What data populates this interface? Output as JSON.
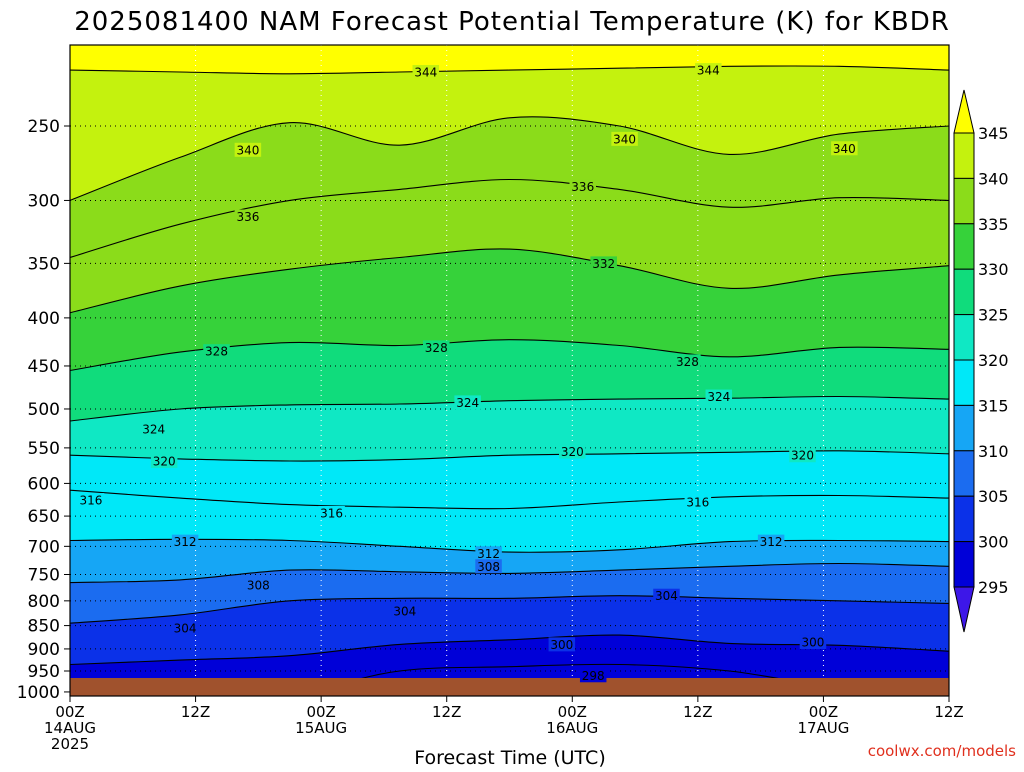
{
  "chart_data": {
    "type": "heatmap",
    "title": "2025081400 NAM Forecast Potential Temperature (K) for KBDR",
    "xlabel": "Forecast Time (UTC)",
    "ylabel": "",
    "x_ticks": [
      {
        "hour": 0,
        "line1": "00Z",
        "line2": "14AUG",
        "line3": "2025"
      },
      {
        "hour": 12,
        "line1": "12Z",
        "line2": "",
        "line3": ""
      },
      {
        "hour": 24,
        "line1": "00Z",
        "line2": "15AUG",
        "line3": ""
      },
      {
        "hour": 36,
        "line1": "12Z",
        "line2": "",
        "line3": ""
      },
      {
        "hour": 48,
        "line1": "00Z",
        "line2": "16AUG",
        "line3": ""
      },
      {
        "hour": 60,
        "line1": "12Z",
        "line2": "",
        "line3": ""
      },
      {
        "hour": 72,
        "line1": "00Z",
        "line2": "17AUG",
        "line3": ""
      },
      {
        "hour": 84,
        "line1": "12Z",
        "line2": "",
        "line3": ""
      }
    ],
    "xlim": [
      0,
      84
    ],
    "y_ticks": [
      250,
      300,
      350,
      400,
      450,
      500,
      550,
      600,
      650,
      700,
      750,
      800,
      850,
      900,
      950,
      1000
    ],
    "ylim": [
      1010,
      205
    ],
    "y_scale": "log",
    "y_inverted": true,
    "grid": true,
    "colorbar": {
      "ticks": [
        "295",
        "300",
        "305",
        "310",
        "315",
        "320",
        "325",
        "330",
        "335",
        "340",
        "345"
      ],
      "levels": [
        295,
        300,
        305,
        310,
        315,
        320,
        325,
        330,
        335,
        340,
        345
      ],
      "colors": [
        "#3d17e8",
        "#0000d8",
        "#0b31e8",
        "#1b6cf0",
        "#16a6f5",
        "#00e8f8",
        "#0fe8c4",
        "#10dc7c",
        "#36d23a",
        "#8bdc1a",
        "#c4f20e",
        "#ffff00"
      ]
    },
    "series": [
      {
        "level": 344,
        "pressure": [
          218,
          219,
          220,
          219,
          218,
          217,
          216,
          216,
          218
        ]
      },
      {
        "level": 340,
        "pressure": [
          300,
          270,
          248,
          262,
          245,
          250,
          268,
          255,
          250
        ]
      },
      {
        "level": 336,
        "pressure": [
          345,
          318,
          300,
          292,
          285,
          292,
          305,
          298,
          300
        ]
      },
      {
        "level": 332,
        "pressure": [
          395,
          370,
          355,
          345,
          338,
          352,
          372,
          360,
          352
        ]
      },
      {
        "level": 328,
        "pressure": [
          455,
          435,
          425,
          428,
          422,
          428,
          440,
          430,
          432
        ]
      },
      {
        "level": 324,
        "pressure": [
          515,
          500,
          495,
          494,
          490,
          488,
          487,
          485,
          488
        ]
      },
      {
        "level": 320,
        "pressure": [
          560,
          565,
          568,
          566,
          560,
          558,
          556,
          554,
          558
        ]
      },
      {
        "level": 316,
        "pressure": [
          610,
          622,
          632,
          636,
          638,
          628,
          620,
          618,
          622
        ]
      },
      {
        "level": 312,
        "pressure": [
          690,
          688,
          690,
          700,
          710,
          706,
          692,
          690,
          692
        ]
      },
      {
        "level": 308,
        "pressure": [
          765,
          760,
          742,
          745,
          748,
          742,
          735,
          730,
          735
        ]
      },
      {
        "level": 304,
        "pressure": [
          845,
          828,
          800,
          795,
          795,
          790,
          795,
          800,
          805
        ]
      },
      {
        "level": 300,
        "pressure": [
          935,
          925,
          915,
          890,
          880,
          870,
          888,
          892,
          905
        ]
      },
      {
        "level": 298,
        "pressure": [
          1005,
          1005,
          1005,
          950,
          940,
          935,
          950,
          990,
          1000
        ]
      }
    ],
    "contour_labels": [
      "344",
      "344",
      "340",
      "340",
      "340",
      "336",
      "336",
      "332",
      "328",
      "328",
      "328",
      "324",
      "324",
      "324",
      "320",
      "320",
      "320",
      "316",
      "316",
      "316",
      "312",
      "312",
      "312",
      "308",
      "308",
      "304",
      "304",
      "304",
      "300",
      "300",
      "298"
    ],
    "label_positions": [
      {
        "level": 344,
        "hour": 34,
        "p": 219
      },
      {
        "level": 344,
        "hour": 61,
        "p": 218
      },
      {
        "level": 340,
        "hour": 17,
        "p": 265
      },
      {
        "level": 340,
        "hour": 53,
        "p": 258
      },
      {
        "level": 340,
        "hour": 74,
        "p": 264
      },
      {
        "level": 336,
        "hour": 17,
        "p": 312
      },
      {
        "level": 336,
        "hour": 49,
        "p": 290
      },
      {
        "level": 332,
        "hour": 51,
        "p": 350
      },
      {
        "level": 328,
        "hour": 14,
        "p": 434
      },
      {
        "level": 328,
        "hour": 35,
        "p": 430
      },
      {
        "level": 328,
        "hour": 59,
        "p": 445
      },
      {
        "level": 324,
        "hour": 8,
        "p": 525
      },
      {
        "level": 324,
        "hour": 38,
        "p": 492
      },
      {
        "level": 324,
        "hour": 62,
        "p": 485
      },
      {
        "level": 320,
        "hour": 9,
        "p": 568
      },
      {
        "level": 320,
        "hour": 48,
        "p": 555
      },
      {
        "level": 320,
        "hour": 70,
        "p": 560
      },
      {
        "level": 316,
        "hour": 2,
        "p": 625
      },
      {
        "level": 316,
        "hour": 25,
        "p": 645
      },
      {
        "level": 316,
        "hour": 60,
        "p": 628
      },
      {
        "level": 312,
        "hour": 11,
        "p": 692
      },
      {
        "level": 312,
        "hour": 40,
        "p": 712
      },
      {
        "level": 312,
        "hour": 67,
        "p": 692
      },
      {
        "level": 308,
        "hour": 18,
        "p": 770
      },
      {
        "level": 308,
        "hour": 40,
        "p": 735
      },
      {
        "level": 304,
        "hour": 11,
        "p": 855
      },
      {
        "level": 304,
        "hour": 32,
        "p": 820
      },
      {
        "level": 304,
        "hour": 57,
        "p": 790
      },
      {
        "level": 300,
        "hour": 47,
        "p": 890
      },
      {
        "level": 300,
        "hour": 71,
        "p": 885
      },
      {
        "level": 298,
        "hour": 50,
        "p": 960
      }
    ],
    "credit": "coolwx.com/models"
  }
}
